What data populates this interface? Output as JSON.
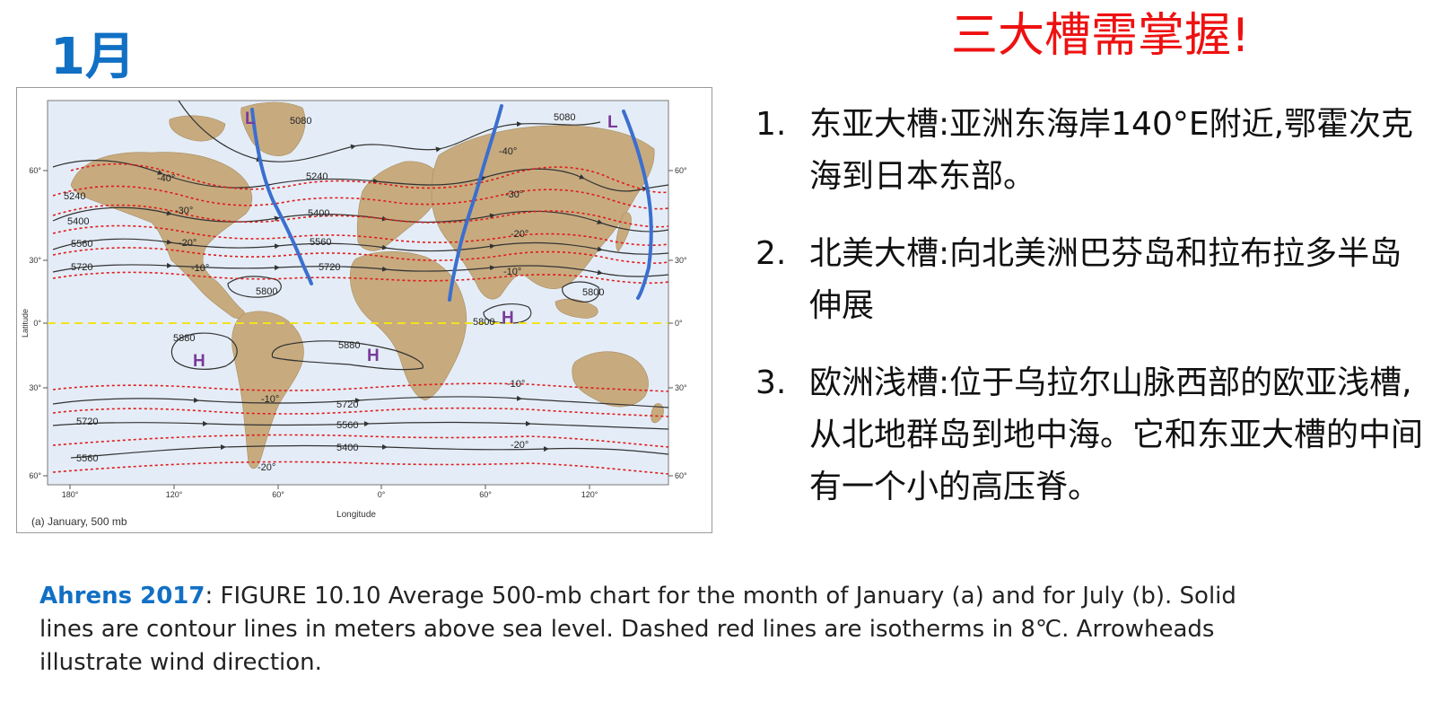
{
  "month_title": "1月",
  "headline": "三大槽需掌握!",
  "figure": {
    "panel_label": "(a) January, 500 mb",
    "xlabel": "Longitude",
    "ylabel": "Latitude",
    "lon_ticks": [
      "180°",
      "120°",
      "60°",
      "0°",
      "60°",
      "120°"
    ],
    "lat_ticks": [
      "60°",
      "30°",
      "0°",
      "30°",
      "60°"
    ],
    "contour_labels": [
      "5080",
      "5080",
      "5240",
      "5240",
      "5400",
      "5400",
      "5560",
      "5560",
      "5720",
      "5720",
      "5800",
      "5800",
      "5800",
      "5880",
      "5880",
      "5720",
      "5560",
      "5400",
      "5720",
      "5560"
    ],
    "isotherm_labels": [
      "-40°",
      "-40°",
      "-30°",
      "-30°",
      "-20°",
      "-20°",
      "-10°",
      "-10°",
      "-10°",
      "-10°",
      "-20°",
      "-20°"
    ],
    "pressure_marks": [
      "L",
      "L",
      "H",
      "H",
      "H"
    ],
    "colors": {
      "land": "#c7ab7f",
      "ocean": "#e4edf7",
      "contour": "#333333",
      "isotherm": "#e01b1b",
      "equator": "#f2e21c",
      "trough": "#3b6fcf",
      "pressure_mark": "#7a3a9a"
    }
  },
  "points": [
    {
      "num": "1.",
      "text": "东亚大槽:亚洲东海岸140°E附近,鄂霍次克海到日本东部。"
    },
    {
      "num": "2.",
      "text": "北美大槽:向北美洲巴芬岛和拉布拉多半岛伸展"
    },
    {
      "num": "3.",
      "text": "欧洲浅槽:位于乌拉尔山脉西部的欧亚浅槽,从北地群岛到地中海。它和东亚大槽的中间有一个小的高压脊。"
    }
  ],
  "caption": {
    "source": "Ahrens 2017",
    "text": ": FIGURE 10.10 Average 500-mb chart for the month of January (a) and for July (b). Solid lines are contour lines in meters above sea level. Dashed red lines are isotherms in 8℃. Arrowheads illustrate wind direction."
  }
}
